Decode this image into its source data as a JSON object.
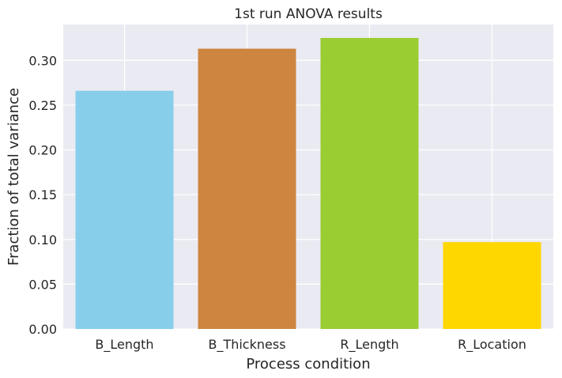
{
  "chart_data": {
    "type": "bar",
    "title": "1st run ANOVA results",
    "xlabel": "Process condition",
    "ylabel": "Fraction of total variance",
    "categories": [
      "B_Length",
      "B_Thickness",
      "R_Length",
      "R_Location"
    ],
    "values": [
      0.266,
      0.313,
      0.325,
      0.097
    ],
    "colors": [
      "#87ceeb",
      "#cd853f",
      "#9acd32",
      "#ffd700"
    ],
    "ylim": [
      0,
      0.34
    ],
    "yticks": [
      0.0,
      0.05,
      0.1,
      0.15,
      0.2,
      0.25,
      0.3
    ],
    "ytick_labels": [
      "0.00",
      "0.05",
      "0.10",
      "0.15",
      "0.20",
      "0.25",
      "0.30"
    ],
    "grid": true,
    "background": "#eaeaf2",
    "grid_color": "#ffffff"
  }
}
